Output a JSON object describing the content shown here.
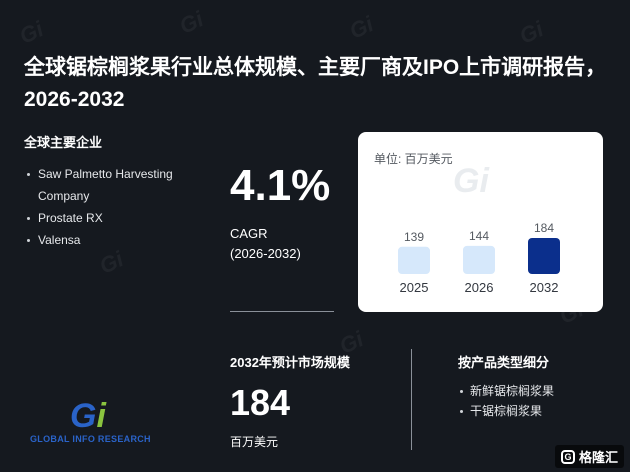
{
  "title": "全球锯棕榈浆果行业总体规模、主要厂商及IPO上市调研报告，2026-2032",
  "companies": {
    "heading": "全球主要企业",
    "items": [
      "Saw Palmetto Harvesting Company",
      "Prostate RX",
      "Valensa"
    ]
  },
  "cagr": {
    "value": "4.1%",
    "label": "CAGR",
    "period": "(2026-2032)"
  },
  "market": {
    "label": "2032年预计市场规模",
    "value": "184",
    "unit": "百万美元"
  },
  "segments": {
    "heading": "按产品类型细分",
    "items": [
      "新鲜锯棕榈浆果",
      "干锯棕榈浆果"
    ]
  },
  "logo": {
    "letters": "Gi",
    "text": "GLOBAL INFO RESEARCH"
  },
  "watermark_mark": "Gi",
  "badge": {
    "icon": "gelonghui-icon",
    "text": "格隆汇"
  },
  "colors": {
    "background": "#15191f",
    "bar_light": "#d6e8fb",
    "bar_dark": "#0b2f8c",
    "logo_blue": "#2a63c8",
    "logo_green": "#8ac43f"
  },
  "chart_data": {
    "type": "bar",
    "unit_label": "单位: 百万美元",
    "categories": [
      "2025",
      "2026",
      "2032"
    ],
    "values": [
      139,
      144,
      184
    ],
    "ylim": [
      0,
      200
    ],
    "grid": false,
    "legend": "none"
  }
}
